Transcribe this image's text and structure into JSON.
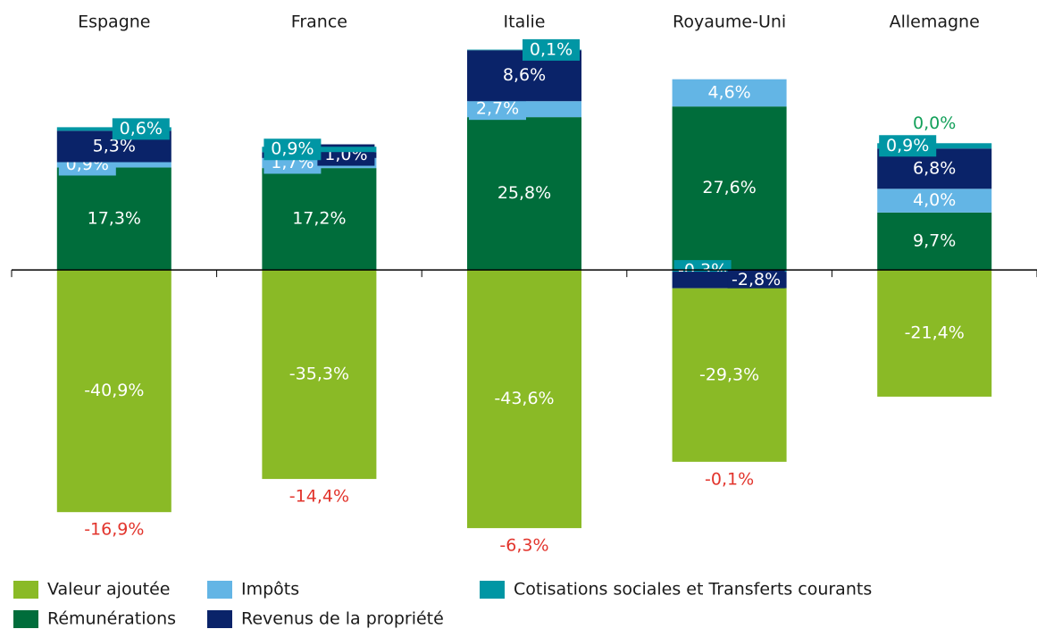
{
  "chart_data": {
    "type": "stacked_bar",
    "categories": [
      "Espagne",
      "France",
      "Italie",
      "Royaume-Uni",
      "Allemagne"
    ],
    "series": [
      {
        "name": "Valeur ajoutée",
        "color": "#8aba26",
        "values": [
          -40.9,
          -35.3,
          -43.6,
          -29.3,
          -21.4
        ],
        "value_labels": [
          "-40,9%",
          "-35,3%",
          "-43,6%",
          "-29,3%",
          "-21,4%"
        ]
      },
      {
        "name": "Rémunérations",
        "color": "#006d3b",
        "values": [
          17.3,
          17.2,
          25.8,
          27.6,
          9.7
        ],
        "value_labels": [
          "17,3%",
          "17,2%",
          "25,8%",
          "27,6%",
          "9,7%"
        ]
      },
      {
        "name": "Impôts",
        "color": "#63b5e5",
        "values": [
          0.9,
          1.7,
          2.7,
          4.6,
          4.0
        ],
        "value_labels": [
          "0,9%",
          "1,7%",
          "2,7%",
          "4,6%",
          "4,0%"
        ]
      },
      {
        "name": "Revenus de la propriété",
        "color": "#0a2369",
        "values": [
          5.3,
          1.0,
          8.6,
          -2.8,
          6.8
        ],
        "value_labels": [
          "5,3%",
          "1,0%",
          "8,6%",
          "-2,8%",
          "6,8%"
        ]
      },
      {
        "name": "Cotisations sociales et Transferts courants",
        "color": "#0096a4",
        "values": [
          0.6,
          0.9,
          0.1,
          -0.3,
          0.9
        ],
        "value_labels": [
          "0,6%",
          "0,9%",
          "0,1%",
          "-0,3%",
          "0,9%"
        ]
      }
    ],
    "totals": {
      "values": [
        -16.9,
        -14.4,
        -6.3,
        -0.1,
        0.0
      ],
      "value_labels": [
        "-16,9%",
        "-14,4%",
        "-6,3%",
        "-0,1%",
        "0,0%"
      ],
      "negative_color": "#e2342c",
      "positive_color": "#13a05a"
    },
    "ylim": [
      -46,
      40
    ]
  }
}
